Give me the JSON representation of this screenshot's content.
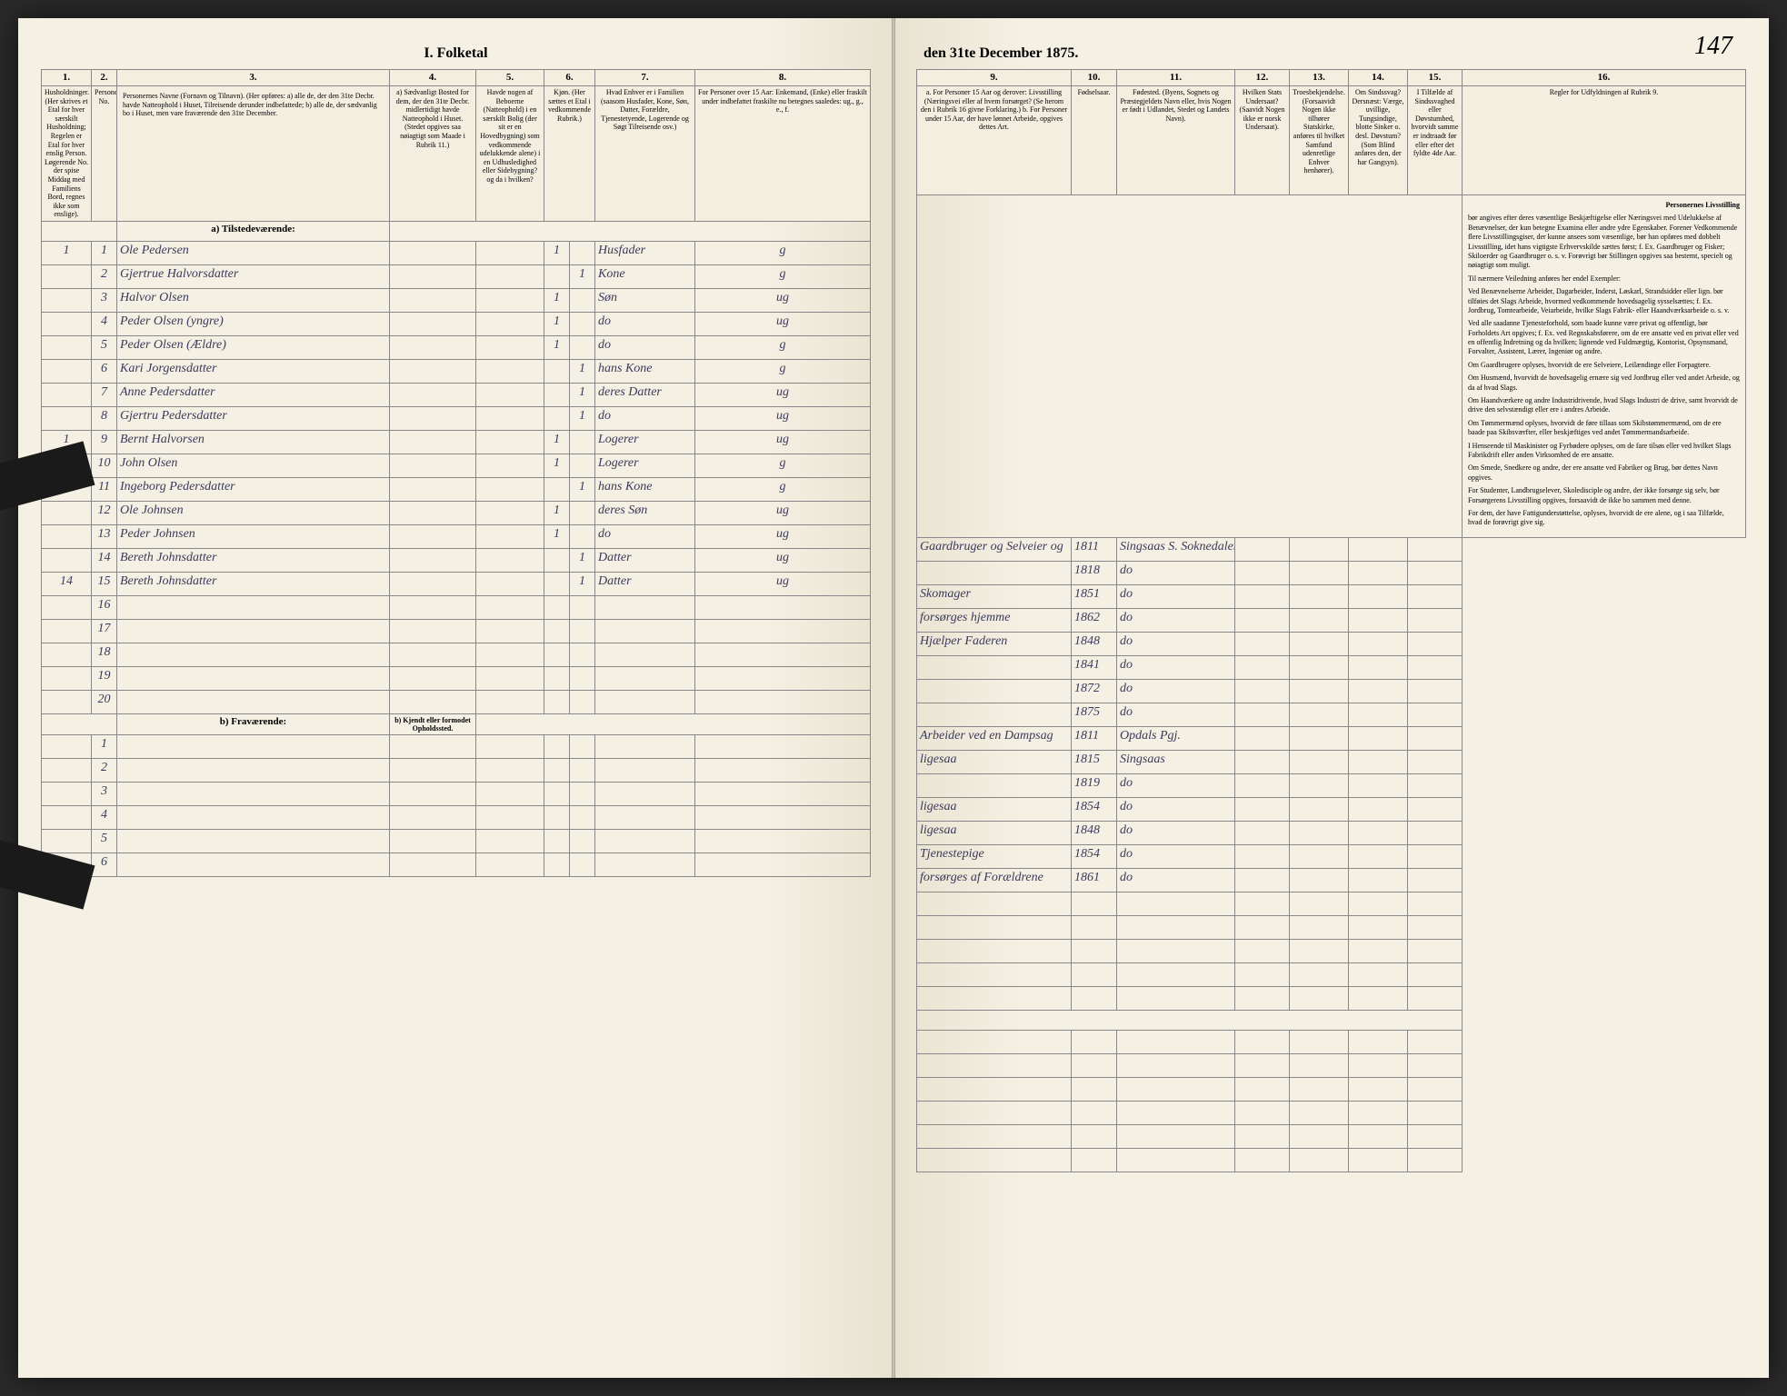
{
  "page_number": "147",
  "title_left": "I. Folketal",
  "title_right": "den 31te December 1875.",
  "columns": {
    "nums": [
      "1.",
      "2.",
      "3.",
      "4.",
      "5.",
      "6.",
      "7.",
      "8.",
      "9.",
      "10.",
      "11.",
      "12.",
      "13.",
      "14.",
      "15.",
      "16."
    ],
    "headers": [
      "Husholdninger. (Her skrives et Etal for hver særskilt Husholdning; Regelen er Etal for hver enslig Person. Løgerende No. der spise Middag med Familiens Bord, regnes ikke som enslige).",
      "Personernes No.",
      "Personernes Navne (Fornavn og Tilnavn).\n(Her opføres:\na) alle de, der den 31te Decbr. havde Natteophold i Huset, Tilreisende derunder indbefattede;\nb) alle de, der sædvanlig bo i Huset, men vare fraværende den 31te December.",
      "a) Sædvanligt Bosted for dem, der den 31te Decbr. midlertidigt havde Natteophold i Huset. (Stedet opgives saa nøiagtigt som Maade i Rubrik 11.)",
      "Havde nogen af Beboerne (Natteophold) i en særskilt Bolig (der sit er en Hovedbygning) som vedkommende udelukkende alene) i en Udhusledighed eller Sidebygning? og da i hvilken?",
      "Kjøn. (Her sættes et Etal i vedkommende Rubrik.)",
      "Hvad Enhver er i Familien (saasom Husfader, Kone, Søn, Datter, Forældre, Tjenestetyende, Logerende og Søgt Tilreisende osv.)",
      "For Personer over 15 Aar: Enkemand, (Enke) eller fraskilt under indbefattet fraskilte nu betegnes saaledes: ug., g., e., f.",
      "a. For Personer 15 Aar og derover: Livsstilling (Næringsvei eller af hvem forsørget? (Se herom den i Rubrik 16 givne Forklaring.)\nb. For Personer under 15 Aar, der have lønnet Arbeide, opgives dettes Art.",
      "Fødselsaar.",
      "Fødested. (Byens, Sognets og Præstegjeldets Navn eller, hvis Nogen er født i Udlandet, Stedet og Landets Navn).",
      "Hvilken Stats Undersaat? (Saavidt Nogen ikke er norsk Undersaat).",
      "Troesbekjendelse. (Forsaavidt Nogen ikke tilhører Statskirke, anføres til hvilket Samfund udenretlige Enhver henhører).",
      "Om Sindssvag? Dersnæst: Værge, uvillige, Tungsindige, blotte Sinker o. desl. Døvstum? (Som Blind anføres den, der har Gangsyn).",
      "I Tilfælde af Sindssvaghed eller Døvstumhed, hvorvidt samme er indtraadt før eller efter det fyldte 4de Aar.",
      "Regler for Udfyldningen af Rubrik 9."
    ]
  },
  "section_a": "a) Tilstedeværende:",
  "section_b": "b) Fraværende:",
  "section_b_sub": "b) Kjendt eller formodet Opholdssted.",
  "rows": [
    {
      "h": "1",
      "n": "1",
      "name": "Ole Pedersen",
      "c5": "1",
      "c7": "Husfader",
      "c8": "g",
      "c9": "Gaardbruger og Selveier og",
      "yr": "1811",
      "place": "Singsaas S. Soknedalens Pgj."
    },
    {
      "h": "",
      "n": "2",
      "name": "Gjertrue Halvorsdatter",
      "c5": "",
      "c6": "1",
      "c7": "Kone",
      "c8": "g",
      "c9": "",
      "yr": "1818",
      "place": "do"
    },
    {
      "h": "",
      "n": "3",
      "name": "Halvor Olsen",
      "c5": "1",
      "c7": "Søn",
      "c8": "ug",
      "c9": "Skomager",
      "yr": "1851",
      "place": "do"
    },
    {
      "h": "",
      "n": "4",
      "name": "Peder Olsen (yngre)",
      "c5": "1",
      "c7": "do",
      "c8": "ug",
      "c9": "forsørges hjemme",
      "yr": "1862",
      "place": "do"
    },
    {
      "h": "",
      "n": "5",
      "name": "Peder Olsen (Ældre)",
      "c5": "1",
      "c7": "do",
      "c8": "g",
      "c9": "Hjælper Faderen",
      "yr": "1848",
      "place": "do"
    },
    {
      "h": "",
      "n": "6",
      "name": "Kari Jorgensdatter",
      "c5": "",
      "c6": "1",
      "c7": "hans Kone",
      "c8": "g",
      "c9": "",
      "yr": "1841",
      "place": "do"
    },
    {
      "h": "",
      "n": "7",
      "name": "Anne Pedersdatter",
      "c5": "",
      "c6": "1",
      "c7": "deres Datter",
      "c8": "ug",
      "c9": "",
      "yr": "1872",
      "place": "do"
    },
    {
      "h": "",
      "n": "8",
      "name": "Gjertru Pedersdatter",
      "c5": "",
      "c6": "1",
      "c7": "do",
      "c8": "ug",
      "c9": "",
      "yr": "1875",
      "place": "do"
    },
    {
      "h": "1",
      "n": "9",
      "name": "Bernt Halvorsen",
      "c5": "1",
      "c7": "Logerer",
      "c8": "ug",
      "c9": "Arbeider ved en Dampsag",
      "yr": "1811",
      "place": "Opdals Pgj."
    },
    {
      "h": "",
      "n": "10",
      "name": "John Olsen",
      "c5": "1",
      "c7": "Logerer",
      "c8": "g",
      "c9": "ligesaa",
      "yr": "1815",
      "place": "Singsaas"
    },
    {
      "h": "",
      "n": "11",
      "name": "Ingeborg Pedersdatter",
      "c5": "",
      "c6": "1",
      "c7": "hans Kone",
      "c8": "g",
      "c9": "",
      "yr": "1819",
      "place": "do"
    },
    {
      "h": "",
      "n": "12",
      "name": "Ole Johnsen",
      "c5": "1",
      "c7": "deres Søn",
      "c8": "ug",
      "c9": "ligesaa",
      "yr": "1854",
      "place": "do"
    },
    {
      "h": "",
      "n": "13",
      "name": "Peder Johnsen",
      "c5": "1",
      "c7": "do",
      "c8": "ug",
      "c9": "ligesaa",
      "yr": "1848",
      "place": "do"
    },
    {
      "h": "",
      "n": "14",
      "name": "Bereth Johnsdatter",
      "c5": "",
      "c6": "1",
      "c7": "Datter",
      "c8": "ug",
      "c9": "Tjenestepige",
      "yr": "1854",
      "place": "do"
    },
    {
      "h": "14",
      "n": "15",
      "name": "Bereth Johnsdatter",
      "c5": "",
      "c6": "1",
      "c7": "Datter",
      "c8": "ug",
      "c9": "forsørges af Forældrene",
      "yr": "1861",
      "place": "do"
    }
  ],
  "empty_a": [
    "16",
    "17",
    "18",
    "19",
    "20"
  ],
  "empty_b": [
    "1",
    "2",
    "3",
    "4",
    "5",
    "6"
  ],
  "instructions_title": "Personernes Livsstilling",
  "instructions": [
    "bør angives efter deres væsentlige Beskjæftigelse eller Næringsvei med Udelukkelse af Benævnelser, der kun betegne Examina eller andre ydre Egenskaber. Forener Vedkommende flere Livsstillingsgiser, der kunne ansees som væsentlige, bør han opføres med dobbelt Livsstilling, idet hans vigtigste Erhvervskilde sættes først; f. Ex. Gaardbruger og Fisker; Skiloerder og Gaardbruger o. s. v. Forøvrigt bør Stillingen opgives saa bestemt, specielt og nøiagtigt som muligt.",
    "Til nærmere Veiledning anføres her endel Exempler:",
    "Ved Benævnelserne Arbeider, Dagarbeider, Inderst, Løskarl, Strandsidder eller lign. bør tilføies det Slags Arbeide, hvormed vedkommende hovedsagelig sysselsættes; f. Ex. Jordbrug, Tomtearbeide, Veiarbeide, hvilke Slags Fabrik- eller Haandværksarbeide o. s. v.",
    "Ved alle saadanne Tjenesteforhold, som baade kunne være privat og offentligt, bør Forholdets Art opgives; f. Ex. ved Regnskabsførere, om de ere ansatte ved en privat eller ved en offentlig Indretning og da hvilken; lignende ved Fuldmægtig, Kontorist, Opsynsmand, Forvalter, Assistent, Lærer, Ingeniør og andre.",
    "Om Gaardbrugere oplyses, hvorvidt de ere Selveiere, Leilændinge eller Forpagtere.",
    "Om Husmænd, hvorvidt de hovedsagelig ernære sig ved Jordbrug eller ved andet Arbeide, og da af hvad Slags.",
    "Om Haandværkere og andre Industridrivende, hvad Slags Industri de drive, samt hvorvidt de drive den selvstændigt eller ere i andres Arbeide.",
    "Om Tømmermænd oplyses, hvorvidt de føre tillaas som Skibstømmermænd, om de ere baade paa Skibsværfter, eller beskjæftiges ved andet Tømmermandsarbeide.",
    "I Henseende til Maskinister og Fyrbødere oplyses, om de fare tilsøs eller ved hvilket Slags Fabrikdrift eller anden Virksomhed de ere ansatte.",
    "Om Smede, Snedkere og andre, der ere ansatte ved Fabriker og Brug, bør dettes Navn opgives.",
    "For Studenter, Landbrugselever, Skoledisciple og andre, der ikke forsørge sig selv, bør Forsørgerens Livsstilling opgives, forsaavidt de ikke bo sammen med denne.",
    "For dem, der have Fattigunderstøttelse, oplyses, hvorvidt de ere alene, og i saa Tilfælde, hvad de forøvrigt give sig."
  ]
}
